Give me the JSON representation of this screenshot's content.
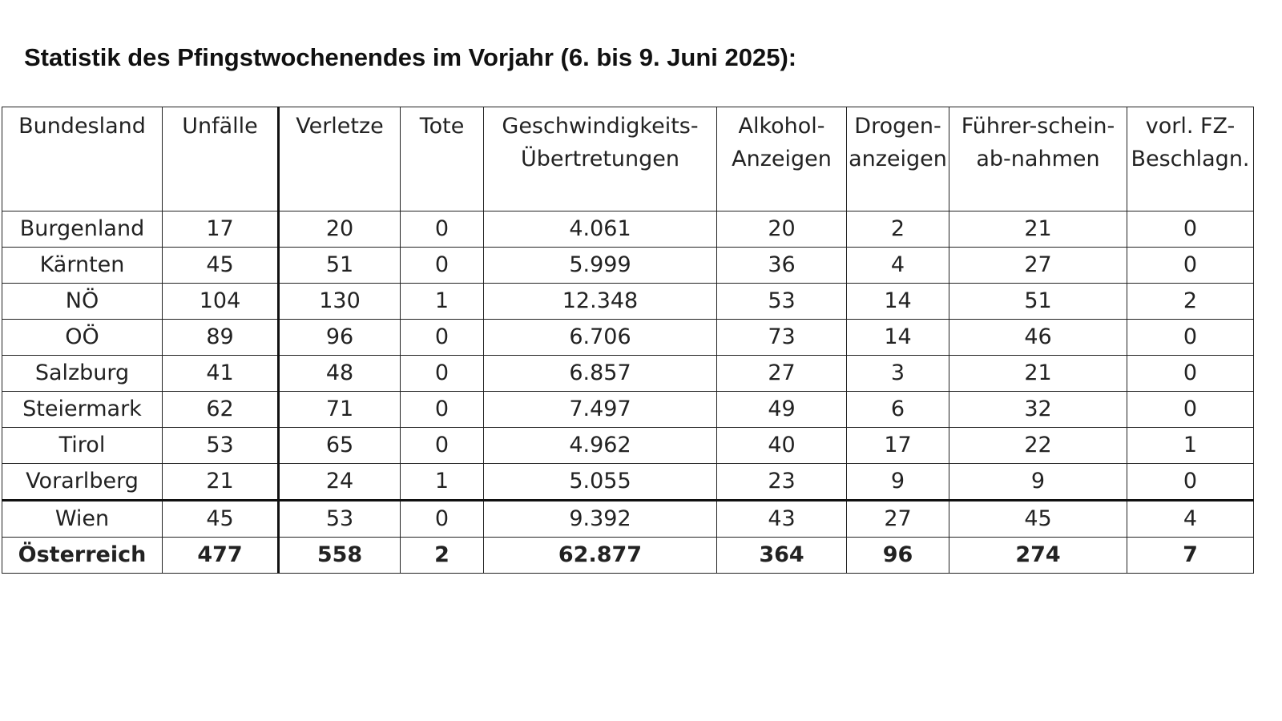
{
  "title": "Statistik des Pfingstwochenendes im Vorjahr (6. bis 9. Juni 2025):",
  "table": {
    "headers": [
      "Bundesland",
      "Unfälle",
      "Verletze",
      "Tote",
      "Geschwindigkeits-Übertretungen",
      "Alkohol-Anzeigen",
      "Drogen-anzeigen",
      "Führer-schein-ab-nahmen",
      "vorl. FZ-Beschlagn."
    ],
    "rows": [
      [
        "Burgenland",
        "17",
        "20",
        "0",
        "4.061",
        "20",
        "2",
        "21",
        "0"
      ],
      [
        "Kärnten",
        "45",
        "51",
        "0",
        "5.999",
        "36",
        "4",
        "27",
        "0"
      ],
      [
        "NÖ",
        "104",
        "130",
        "1",
        "12.348",
        "53",
        "14",
        "51",
        "2"
      ],
      [
        "OÖ",
        "89",
        "96",
        "0",
        "6.706",
        "73",
        "14",
        "46",
        "0"
      ],
      [
        "Salzburg",
        "41",
        "48",
        "0",
        "6.857",
        "27",
        "3",
        "21",
        "0"
      ],
      [
        "Steiermark",
        "62",
        "71",
        "0",
        "7.497",
        "49",
        "6",
        "32",
        "0"
      ],
      [
        "Tirol",
        "53",
        "65",
        "0",
        "4.962",
        "40",
        "17",
        "22",
        "1"
      ],
      [
        "Vorarlberg",
        "21",
        "24",
        "1",
        "5.055",
        "23",
        "9",
        "9",
        "0"
      ],
      [
        "Wien",
        "45",
        "53",
        "0",
        "9.392",
        "43",
        "27",
        "45",
        "4"
      ],
      [
        "Österreich",
        "477",
        "558",
        "2",
        "62.877",
        "364",
        "96",
        "274",
        "7"
      ]
    ]
  }
}
